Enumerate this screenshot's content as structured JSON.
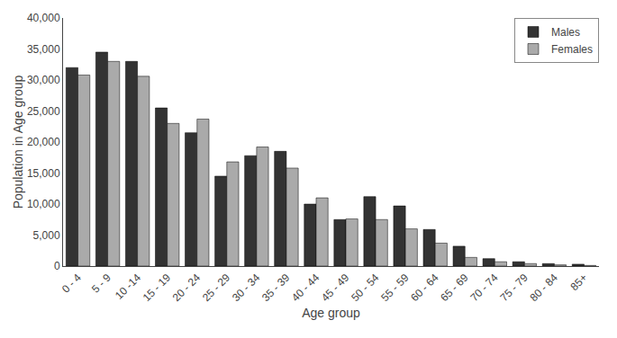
{
  "chart_data": {
    "type": "bar",
    "categories": [
      "0 - 4",
      "5 - 9",
      "10 -14",
      "15 - 19",
      "20 - 24",
      "25 - 29",
      "30 - 34",
      "35 - 39",
      "40 - 44",
      "45 - 49",
      "50 - 54",
      "55 - 59",
      "60 - 64",
      "65 - 69",
      "70 - 74",
      "75 - 79",
      "80 - 84",
      "85+"
    ],
    "series": [
      {
        "name": "Males",
        "color": "#333333",
        "values": [
          32000,
          34500,
          33000,
          25500,
          21500,
          14500,
          17800,
          18500,
          10000,
          7500,
          11200,
          9700,
          5900,
          3200,
          1200,
          700,
          400,
          300
        ]
      },
      {
        "name": "Females",
        "color": "#aaaaaa",
        "values": [
          30800,
          33000,
          30600,
          23000,
          23700,
          16800,
          19200,
          15800,
          11000,
          7600,
          7500,
          6000,
          3700,
          1400,
          700,
          400,
          200,
          100
        ]
      }
    ],
    "xlabel": "Age group",
    "ylabel": "Population in Age group",
    "ylim": [
      0,
      40000
    ],
    "yticks": [
      0,
      {
        "value": 5000,
        "label": "5,000"
      },
      {
        "value": 10000,
        "label": "10,000"
      },
      {
        "value": 15000,
        "label": "15,000"
      },
      {
        "value": 20000,
        "label": "20,000"
      },
      {
        "value": 25000,
        "label": "25,000"
      },
      {
        "value": 30000,
        "label": "30,000"
      },
      {
        "value": 35000,
        "label": "35,000"
      },
      {
        "value": 40000,
        "label": "40,000"
      }
    ],
    "grid": false,
    "legend": "upper right"
  }
}
